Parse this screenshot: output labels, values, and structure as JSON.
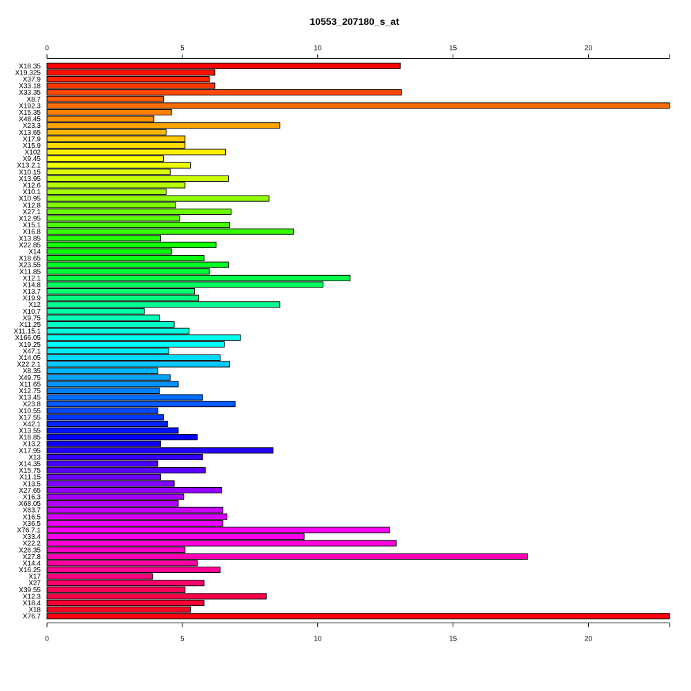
{
  "chart_data": {
    "type": "bar",
    "orientation": "horizontal",
    "title": "10553_207180_s_at",
    "xlabel": "",
    "ylabel": "",
    "xlim": [
      0,
      23
    ],
    "x_ticks": [
      "0",
      "5",
      "10",
      "15",
      "20"
    ],
    "x_axis_positions": [
      "top",
      "bottom"
    ],
    "grid": false,
    "legend": "none",
    "bar_colors": "rainbow palette from red through magenta, purple, blue, cyan, green, yellow, orange back to red",
    "categories": [
      "X18.35",
      "X19.325",
      "X37.9",
      "X33.18",
      "X33.35",
      "X8.7",
      "X192.3",
      "X15.35",
      "X48.45",
      "X23.3",
      "X13.65",
      "X17.9",
      "X15.9",
      "X102",
      "X9.45",
      "X13.2.1",
      "X10.15",
      "X13.95",
      "X12.6",
      "X10.1",
      "X10.95",
      "X12.8",
      "X27.1",
      "X12.95",
      "X15.1",
      "X16.8",
      "X13.85",
      "X22.85",
      "X14",
      "X18.65",
      "X23.55",
      "X11.85",
      "X12.1",
      "X14.8",
      "X13.7",
      "X19.9",
      "X12",
      "X10.7",
      "X9.75",
      "X11.25",
      "X11.15.1",
      "X166.05",
      "X19.25",
      "X47.1",
      "X14.05",
      "X22.2.1",
      "X8.35",
      "X49.75",
      "X11.65",
      "X12.75",
      "X13.45",
      "X23.8",
      "X10.55",
      "X17.55",
      "X42.1",
      "X13.55",
      "X18.85",
      "X13.2",
      "X17.95",
      "X13",
      "X14.35",
      "X15.75",
      "X11.15",
      "X13.5",
      "X27.65",
      "X16.3",
      "X68.05",
      "X63.7",
      "X16.5",
      "X36.5",
      "X76.7.1",
      "X33.4",
      "X22.2",
      "X26.35",
      "X27.8",
      "X14.4",
      "X16.25",
      "X17",
      "X27",
      "X39.55",
      "X12.3",
      "X18.4",
      "X18",
      "X76.7"
    ],
    "values": [
      13.05,
      6.2,
      6.0,
      6.2,
      13.1,
      4.3,
      23.0,
      4.6,
      3.95,
      8.6,
      4.4,
      5.1,
      5.1,
      6.6,
      4.3,
      5.3,
      4.55,
      6.7,
      5.1,
      4.4,
      8.2,
      4.75,
      6.8,
      4.9,
      6.75,
      9.1,
      4.2,
      6.25,
      4.6,
      5.8,
      6.7,
      6.0,
      11.2,
      10.2,
      5.45,
      5.6,
      8.6,
      3.6,
      4.15,
      4.7,
      5.25,
      7.15,
      6.55,
      4.5,
      6.4,
      6.75,
      4.1,
      4.55,
      4.85,
      4.15,
      5.75,
      6.95,
      4.1,
      4.3,
      4.45,
      4.85,
      5.55,
      4.2,
      8.35,
      5.75,
      4.1,
      5.85,
      4.2,
      4.7,
      6.45,
      5.05,
      4.85,
      6.5,
      6.65,
      6.5,
      12.65,
      9.5,
      12.9,
      5.1,
      17.75,
      5.55,
      6.4,
      3.9,
      5.8,
      5.1,
      8.1,
      5.8,
      5.3,
      23.0
    ]
  }
}
